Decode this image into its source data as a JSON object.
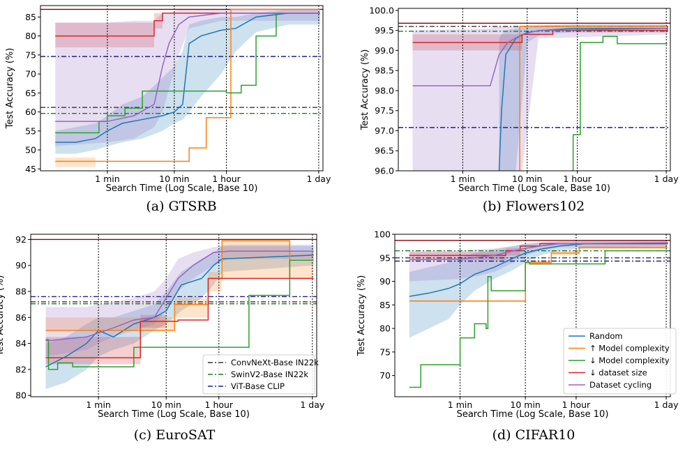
{
  "figure": {
    "xlabel": "Search Time (Log Scale, Base 10)",
    "ylabel": "Test Accuracy (%)",
    "xticks": [
      {
        "value": 60,
        "label": "1 min"
      },
      {
        "value": 600,
        "label": "10 min"
      },
      {
        "value": 3600,
        "label": "1 hour"
      },
      {
        "value": 86400,
        "label": "1 day"
      }
    ],
    "xscale": "log",
    "xlim": [
      6,
      100000
    ],
    "vertical_lines_at_ticks": "dotted",
    "colors": {
      "random": "#1f77b4",
      "up_complexity": "#ff7f0e",
      "down_complexity": "#2ca02c",
      "down_dataset": "#d62728",
      "cycling": "#9467bd",
      "convnext_ref": "#333333",
      "swin_ref": "#1f7a1f",
      "vit_ref": "#1f1f8f",
      "red_ref": "#8b0000"
    },
    "legend_methods": [
      {
        "name": "Random",
        "color": "#1f77b4"
      },
      {
        "name": "↑ Model complexity",
        "color": "#ff7f0e"
      },
      {
        "name": "↓ Model complexity",
        "color": "#2ca02c"
      },
      {
        "name": "↓ dataset size",
        "color": "#d62728"
      },
      {
        "name": "Dataset cycling",
        "color": "#9467bd"
      }
    ],
    "legend_baselines": [
      {
        "name": "ConvNeXt-Base IN22k",
        "color": "#333333"
      },
      {
        "name": "SwinV2-Base IN22k",
        "color": "#1f7a1f"
      },
      {
        "name": "ViT-Base CLIP",
        "color": "#1f1f8f"
      }
    ]
  },
  "chart_data": [
    {
      "type": "line",
      "caption": "(a) GTSRB",
      "ylim": [
        44.5,
        88
      ],
      "yticks": [
        45,
        50,
        55,
        60,
        65,
        70,
        75,
        80,
        85
      ],
      "hlines": [
        {
          "name": "ConvNeXt-Base IN22k",
          "y": 61.2
        },
        {
          "name": "SwinV2-Base IN22k",
          "y": 59.6
        },
        {
          "name": "ViT-Base CLIP",
          "y": 74.6
        },
        {
          "name": "top",
          "y": 87.0
        }
      ],
      "series": [
        {
          "name": "Random",
          "x": [
            10,
            20,
            40,
            60,
            100,
            200,
            400,
            600,
            800,
            1000,
            1500,
            3000,
            5000,
            10000,
            30000,
            90000
          ],
          "y": [
            52,
            52,
            53,
            55,
            57,
            58,
            59,
            60,
            62,
            78,
            80,
            81.5,
            82,
            85,
            86,
            86
          ],
          "band_low": [
            49,
            49,
            50,
            51,
            52,
            53,
            55,
            57,
            58,
            60,
            64,
            70,
            76,
            81,
            83,
            83
          ],
          "band_high": [
            55,
            56,
            57,
            59,
            62,
            64,
            69,
            72,
            76,
            83,
            84,
            85,
            85,
            86,
            87,
            87
          ],
          "step": false
        },
        {
          "name": "↑ Model complexity",
          "x": [
            10,
            600,
            1000,
            1800,
            3600,
            4200,
            5000,
            90000
          ],
          "y": [
            47,
            47,
            50.5,
            58.5,
            58.5,
            87,
            87,
            87
          ],
          "band_low": [
            45.5,
            45.5
          ],
          "band_high": [
            48,
            48
          ],
          "band_x": [
            10,
            40
          ],
          "step": true
        },
        {
          "name": "↓ Model complexity",
          "x": [
            10,
            45,
            60,
            110,
            200,
            3600,
            6000,
            10000,
            20000,
            25000,
            90000
          ],
          "y": [
            54.5,
            57.5,
            59,
            61,
            65.5,
            65,
            67,
            80,
            86,
            86,
            86
          ],
          "step": true
        },
        {
          "name": "↓ dataset size",
          "x": [
            10,
            230,
            300,
            400,
            3600,
            90000
          ],
          "y": [
            80,
            80,
            84,
            86,
            86,
            86
          ],
          "band_low": [
            77,
            77,
            82,
            84
          ],
          "band_high": [
            83.5,
            83.5,
            86,
            86
          ],
          "band_x": [
            10,
            230,
            300,
            400
          ],
          "step": true
        },
        {
          "name": "Dataset cycling",
          "x": [
            10,
            60,
            150,
            300,
            400,
            500,
            700,
            1000,
            3000,
            90000
          ],
          "y": [
            57.5,
            57.5,
            59,
            62,
            72,
            78,
            83,
            85,
            86,
            86
          ],
          "band_low": [
            51,
            52,
            53,
            56,
            60,
            66,
            75,
            82,
            84,
            84
          ],
          "band_high": [
            83.5,
            83.5,
            84,
            84,
            86,
            86,
            87,
            87,
            87,
            87
          ],
          "step": false
        }
      ]
    },
    {
      "type": "line",
      "caption": "(b) Flowers102",
      "ylim": [
        96,
        100.05
      ],
      "yticks": [
        96.0,
        96.5,
        97.0,
        97.5,
        98.0,
        98.5,
        99.0,
        99.5,
        100.0
      ],
      "ytick_labels": [
        "96.0",
        "96.5",
        "97.0",
        "97.5",
        "98.0",
        "98.5",
        "99.0",
        "99.5",
        "100.0"
      ],
      "hlines": [
        {
          "name": "ConvNeXt-Base IN22k",
          "y": 99.6
        },
        {
          "name": "SwinV2-Base IN22k",
          "y": 99.48
        },
        {
          "name": "ViT-Base CLIP",
          "y": 97.08
        },
        {
          "name": "top",
          "y": 99.68
        }
      ],
      "series": [
        {
          "name": "Random",
          "x": [
            220,
            240,
            280,
            400,
            600,
            1000,
            3000,
            90000
          ],
          "y": [
            96,
            97.5,
            98.9,
            99.3,
            99.45,
            99.5,
            99.55,
            99.55
          ],
          "band_low": [
            96,
            96,
            96,
            96,
            99.2,
            99.4,
            99.45,
            99.45
          ],
          "band_high": [
            99.3,
            99.4,
            99.5,
            99.55,
            99.6,
            99.62,
            99.65,
            99.65
          ],
          "step": false
        },
        {
          "name": "↑ Model complexity",
          "x": [
            450,
            460,
            1000,
            90000
          ],
          "y": [
            96,
            99.6,
            99.6,
            99.6
          ],
          "step": true
        },
        {
          "name": "↓ Model complexity",
          "x": [
            2900,
            3100,
            4000,
            4200,
            9000,
            15000,
            90000
          ],
          "y": [
            96,
            96.9,
            99.2,
            99.2,
            99.35,
            99.17,
            99.17
          ],
          "step": true
        },
        {
          "name": "↓ dataset size",
          "x": [
            10,
            300,
            500,
            1500,
            90000
          ],
          "y": [
            99.2,
            99.2,
            99.4,
            99.5,
            99.6
          ],
          "band_low": [
            99.0,
            99.0,
            99.3
          ],
          "band_high": [
            99.4,
            99.4,
            99.5
          ],
          "band_x": [
            10,
            300,
            500
          ],
          "step": true
        },
        {
          "name": "Dataset cycling",
          "x": [
            10,
            160,
            220,
            300,
            500,
            900,
            90000
          ],
          "y": [
            98.12,
            98.12,
            98.9,
            99.2,
            99.4,
            99.5,
            99.55
          ],
          "band_low": [
            96,
            96,
            96,
            96,
            96,
            99.3,
            99.4
          ],
          "band_high": [
            99.5,
            99.55,
            99.6,
            99.6,
            99.62,
            99.65,
            99.65
          ],
          "step": false
        }
      ]
    },
    {
      "type": "line",
      "caption": "(c) EuroSAT",
      "ylim": [
        79.9,
        92.4
      ],
      "yticks": [
        80,
        82,
        84,
        86,
        88,
        90,
        92
      ],
      "hlines": [
        {
          "name": "ConvNeXt-Base IN22k",
          "y": 87.2
        },
        {
          "name": "SwinV2-Base IN22k",
          "y": 87.05
        },
        {
          "name": "ViT-Base CLIP",
          "y": 87.6
        },
        {
          "name": "top",
          "y": 92.0
        }
      ],
      "series": [
        {
          "name": "Random",
          "x": [
            10,
            20,
            40,
            60,
            100,
            200,
            400,
            600,
            1000,
            2000,
            3000,
            4000,
            90000
          ],
          "y": [
            82.2,
            83,
            84,
            85,
            84.5,
            85.5,
            86,
            86.5,
            88.5,
            89,
            90,
            90.5,
            90.8
          ],
          "band_low": [
            80.5,
            81,
            82,
            83,
            83.5,
            84,
            85,
            85.5,
            86.5,
            87.5,
            88.5,
            89.5,
            90
          ],
          "band_high": [
            84,
            84.5,
            85.5,
            86,
            86,
            86.5,
            87,
            88,
            89.5,
            90.5,
            91,
            91.5,
            91.5
          ],
          "step": false
        },
        {
          "name": "↑ Model complexity",
          "x": [
            10,
            500,
            800,
            2500,
            4000,
            30000,
            40000,
            90000
          ],
          "y": [
            85,
            85,
            87,
            89,
            91.9,
            91.9,
            89,
            89
          ],
          "band_low": [
            85,
            85,
            86,
            88,
            89,
            89,
            89,
            89
          ],
          "band_high": [
            86,
            86,
            87.5,
            89.5,
            91.9,
            91.9,
            91,
            91
          ],
          "step": true
        },
        {
          "name": "↓ Model complexity",
          "x": [
            10,
            11,
            15,
            25,
            80,
            200,
            8000,
            10000,
            40000,
            90000
          ],
          "y": [
            84.3,
            82,
            82.5,
            82.2,
            82.2,
            83.7,
            83.7,
            87.7,
            90.4,
            90.4
          ],
          "step": true
        },
        {
          "name": "↓ dataset size",
          "x": [
            10,
            150,
            250,
            600,
            900,
            2500,
            3000,
            90000
          ],
          "y": [
            82.9,
            82.9,
            85.7,
            85.7,
            85.8,
            89,
            89,
            89
          ],
          "band_low": [
            82.4,
            82.4,
            85.2,
            85.2
          ],
          "band_high": [
            84.5,
            84.5,
            86.2,
            86.2
          ],
          "band_x": [
            10,
            150,
            250,
            600
          ],
          "step": true
        },
        {
          "name": "Dataset cycling",
          "x": [
            10,
            40,
            60,
            100,
            200,
            400,
            600,
            900,
            1500,
            3000,
            5000,
            90000
          ],
          "y": [
            84.2,
            84.5,
            84.8,
            85.2,
            85.8,
            86,
            87.5,
            89,
            90,
            91,
            91.1,
            91.1
          ],
          "band_low": [
            83,
            83.5,
            84,
            84.5,
            85,
            85.5,
            86.5,
            88,
            89,
            90,
            90.5,
            90.5
          ],
          "band_high": [
            86.8,
            86.8,
            87,
            87.2,
            87.5,
            88,
            89,
            90.5,
            91,
            91.4,
            91.6,
            91.6
          ],
          "step": false
        }
      ]
    },
    {
      "type": "line",
      "caption": "(d) CIFAR10",
      "ylim": [
        65.5,
        100
      ],
      "yticks": [
        70,
        75,
        80,
        85,
        90,
        95,
        100
      ],
      "hlines": [
        {
          "name": "ConvNeXt-Base IN22k",
          "y": 95.0
        },
        {
          "name": "SwinV2-Base IN22k",
          "y": 96.5
        },
        {
          "name": "ViT-Base CLIP",
          "y": 94.3
        },
        {
          "name": "top",
          "y": 98.7
        }
      ],
      "series": [
        {
          "name": "Random",
          "x": [
            10,
            20,
            40,
            60,
            100,
            200,
            400,
            600,
            1000,
            2000,
            5000,
            90000
          ],
          "y": [
            86.8,
            87.5,
            88.5,
            89.5,
            91.5,
            93,
            95,
            96,
            96.8,
            97.5,
            98,
            98
          ],
          "band_low": [
            78,
            80,
            82,
            85,
            88,
            90.5,
            92.5,
            94,
            95.5,
            96.5,
            97,
            97
          ],
          "band_high": [
            92,
            93,
            94,
            95,
            96,
            96.8,
            97.5,
            98,
            98.3,
            98.5,
            98.6,
            98.6
          ],
          "step": false
        },
        {
          "name": "↑ Model complexity",
          "x": [
            10,
            500,
            600,
            1500,
            4000,
            90000
          ],
          "y": [
            85.8,
            85.8,
            94,
            96,
            97.2,
            97.2
          ],
          "band_low": [
            85.8,
            85.8,
            93.5,
            95.5,
            96.8,
            96.8
          ],
          "band_high": [
            86,
            86,
            94.5,
            96.5,
            97.5,
            97.5
          ],
          "step": true
        },
        {
          "name": "↓ Model complexity",
          "x": [
            10,
            15,
            60,
            100,
            150,
            160,
            180,
            300,
            600,
            700,
            5000,
            10000,
            90000
          ],
          "y": [
            67.5,
            72.3,
            78,
            81,
            80,
            91,
            88,
            88,
            94,
            93.7,
            93.7,
            96.5,
            96.5
          ],
          "step": true
        },
        {
          "name": "↓ dataset size",
          "x": [
            10,
            200,
            300,
            500,
            1000,
            90000
          ],
          "y": [
            95.5,
            95.5,
            96.5,
            97.5,
            98,
            98.3
          ],
          "band_low": [
            94.5,
            94.5,
            95.5,
            96.8
          ],
          "band_high": [
            96.2,
            96.2,
            97,
            97.8
          ],
          "band_x": [
            10,
            200,
            300,
            500
          ],
          "step": true
        },
        {
          "name": "Dataset cycling",
          "x": [
            10,
            60,
            100,
            200,
            400,
            600,
            1000,
            2000,
            90000
          ],
          "y": [
            94.6,
            94.7,
            95,
            95.5,
            96.5,
            97,
            97.5,
            98,
            98.2
          ],
          "band_low": [
            90,
            90.5,
            91,
            92,
            94,
            95.5,
            96.5,
            97.2,
            97.5
          ],
          "band_high": [
            96.5,
            96.5,
            96.8,
            97,
            97.5,
            98,
            98.2,
            98.5,
            98.6
          ],
          "step": false
        }
      ]
    }
  ]
}
